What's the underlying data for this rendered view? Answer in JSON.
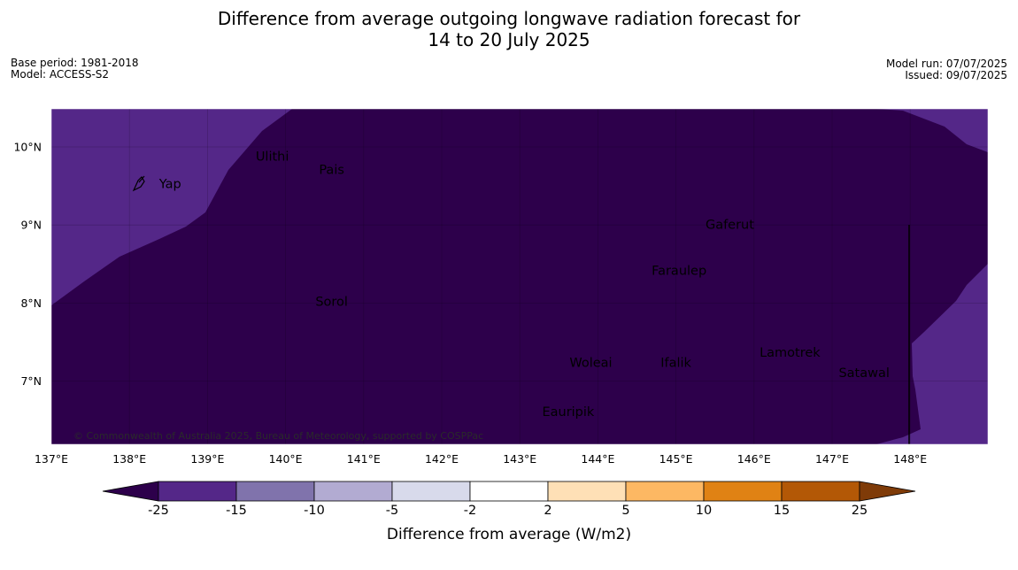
{
  "title": {
    "line1": "Difference from average outgoing longwave radiation forecast for",
    "line2": "14 to 20 July 2025"
  },
  "meta_left": {
    "base_period": "Base period: 1981-2018",
    "model": "Model: ACCESS-S2"
  },
  "meta_right": {
    "model_run": "Model run: 07/07/2025",
    "issued": "Issued: 09/07/2025"
  },
  "map": {
    "x_ticks": [
      "137°E",
      "138°E",
      "139°E",
      "140°E",
      "141°E",
      "142°E",
      "143°E",
      "144°E",
      "145°E",
      "146°E",
      "147°E",
      "148°E"
    ],
    "y_ticks": [
      "10°N",
      "9°N",
      "8°N",
      "7°N"
    ],
    "places": [
      {
        "name": "Ulithi",
        "lon": 139.83,
        "lat": 9.88
      },
      {
        "name": "Yap",
        "lon": 138.38,
        "lat": 9.53
      },
      {
        "name": "Pais",
        "lon": 140.59,
        "lat": 9.71
      },
      {
        "name": "Gaferut",
        "lon": 145.69,
        "lat": 9.01
      },
      {
        "name": "Faraulep",
        "lon": 145.04,
        "lat": 8.42
      },
      {
        "name": "Sorol",
        "lon": 140.59,
        "lat": 8.02
      },
      {
        "name": "Lamotrek",
        "lon": 146.46,
        "lat": 7.37
      },
      {
        "name": "Woleai",
        "lon": 143.91,
        "lat": 7.24
      },
      {
        "name": "Ifalik",
        "lon": 145.0,
        "lat": 7.24
      },
      {
        "name": "Satawal",
        "lon": 147.41,
        "lat": 7.11
      },
      {
        "name": "Eauripik",
        "lon": 143.62,
        "lat": 6.61
      }
    ],
    "copyright": "© Commonwealth of Australia 2025, Bureau of Meteorology, supported by COSPPac",
    "colors": {
      "band_below_25": "#2d004b",
      "band_25_15": "#542788"
    }
  },
  "colorbar": {
    "ticks": [
      "-25",
      "-15",
      "-10",
      "-5",
      "-2",
      "2",
      "5",
      "10",
      "15",
      "25"
    ],
    "colors": [
      "#542788",
      "#8073ac",
      "#b2abd2",
      "#d8daeb",
      "#ffffff",
      "#fee0b6",
      "#fdb863",
      "#e08214",
      "#b35806"
    ],
    "under_color": "#2d004b",
    "over_color": "#7f3b08",
    "label": "Difference from average (W/m2)"
  }
}
